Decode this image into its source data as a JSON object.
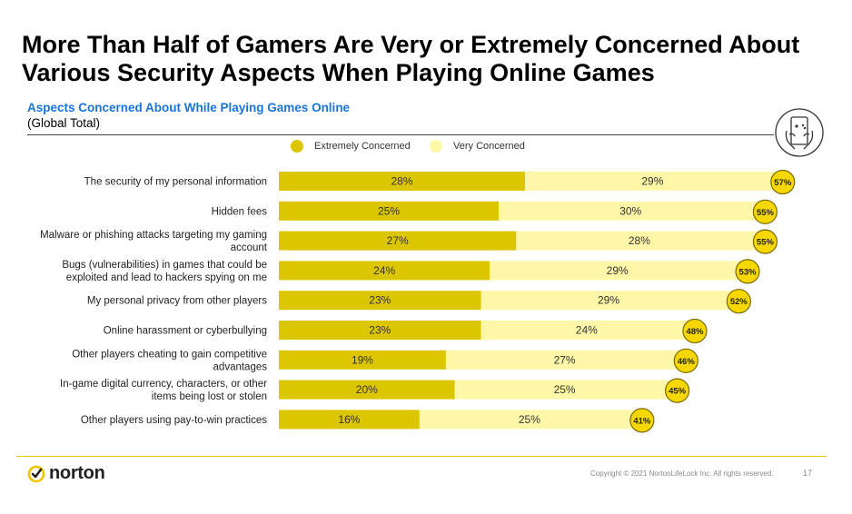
{
  "header": {
    "title": "More Than Half of Gamers Are Very or Extremely Concerned About Various Security Aspects When Playing Online Games",
    "subtitle": "Aspects Concerned About While Playing Games Online",
    "subnote": "(Global Total)"
  },
  "footer": {
    "brand": "norton",
    "copyright": "Copyright © 2021 NortonLifeLock Inc. All rights reserved.",
    "page_number": "17"
  },
  "colors": {
    "extremely": "#dcc600",
    "very": "#fff7a8",
    "total_circle_fill": "#f6d800",
    "total_circle_stroke": "#7a6a00",
    "accent_blue": "#1a73d9"
  },
  "chart_data": {
    "type": "bar",
    "orientation": "horizontal",
    "stacked": true,
    "legend": [
      "Extremely Concerned",
      "Very Concerned"
    ],
    "legend_position": "top",
    "categories": [
      "The security of my personal information",
      "Hidden fees",
      "Malware or phishing attacks targeting my gaming account",
      "Bugs (vulnerabilities) in games that could be exploited and lead to hackers spying on me",
      "My personal privacy from other players",
      "Online harassment or cyberbullying",
      "Other players cheating to gain competitive advantages",
      "In-game digital currency, characters, or other items being lost or stolen",
      "Other players using pay-to-win practices"
    ],
    "category_lines": [
      [
        "The security of my personal information"
      ],
      [
        "Hidden fees"
      ],
      [
        "Malware or phishing attacks targeting my gaming",
        "account"
      ],
      [
        "Bugs (vulnerabilities) in games that could be",
        "exploited and lead to hackers spying on me"
      ],
      [
        "My personal privacy from other players"
      ],
      [
        "Online harassment or cyberbullying"
      ],
      [
        "Other players cheating to gain competitive",
        "advantages"
      ],
      [
        "In-game digital currency, characters, or other",
        "items being lost or stolen"
      ],
      [
        "Other players using pay-to-win practices"
      ]
    ],
    "series": [
      {
        "name": "Extremely Concerned",
        "values": [
          28,
          25,
          27,
          24,
          23,
          23,
          19,
          20,
          16
        ]
      },
      {
        "name": "Very Concerned",
        "values": [
          29,
          30,
          28,
          29,
          29,
          24,
          27,
          25,
          25
        ]
      }
    ],
    "totals": [
      57,
      55,
      55,
      53,
      52,
      48,
      46,
      45,
      41
    ],
    "unit": "%",
    "xlim": [
      0,
      60
    ]
  }
}
